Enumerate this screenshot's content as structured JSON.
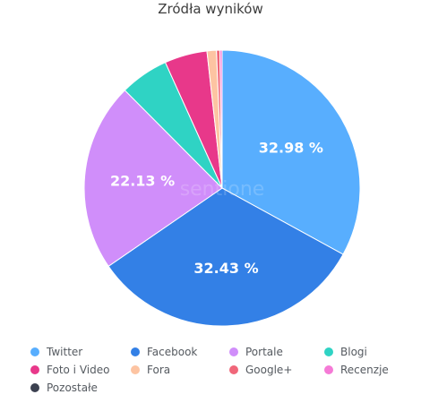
{
  "chart_data": {
    "type": "pie",
    "title": "Zródła wyników",
    "watermark": "sentione",
    "slices": [
      {
        "name": "Twitter",
        "value": 32.98,
        "color": "#58aefe",
        "label": "32.98 %"
      },
      {
        "name": "Facebook",
        "value": 32.43,
        "color": "#3380e6",
        "label": "32.43 %"
      },
      {
        "name": "Portale",
        "value": 22.13,
        "color": "#d08efa",
        "label": "22.13 %"
      },
      {
        "name": "Blogi",
        "value": 5.7,
        "color": "#2fd3c4",
        "label": ""
      },
      {
        "name": "Foto i Video",
        "value": 5.0,
        "color": "#e8388a",
        "label": ""
      },
      {
        "name": "Fora",
        "value": 1.1,
        "color": "#fdc4a2",
        "label": ""
      },
      {
        "name": "Google+",
        "value": 0.4,
        "color": "#f0677a",
        "label": ""
      },
      {
        "name": "Recenzje",
        "value": 0.26,
        "color": "#f57ad6",
        "label": ""
      },
      {
        "name": "Pozostałe",
        "value": 0.0,
        "color": "#3c4150",
        "label": ""
      }
    ],
    "legend": {
      "placement": "bottom",
      "columns": 4
    }
  }
}
